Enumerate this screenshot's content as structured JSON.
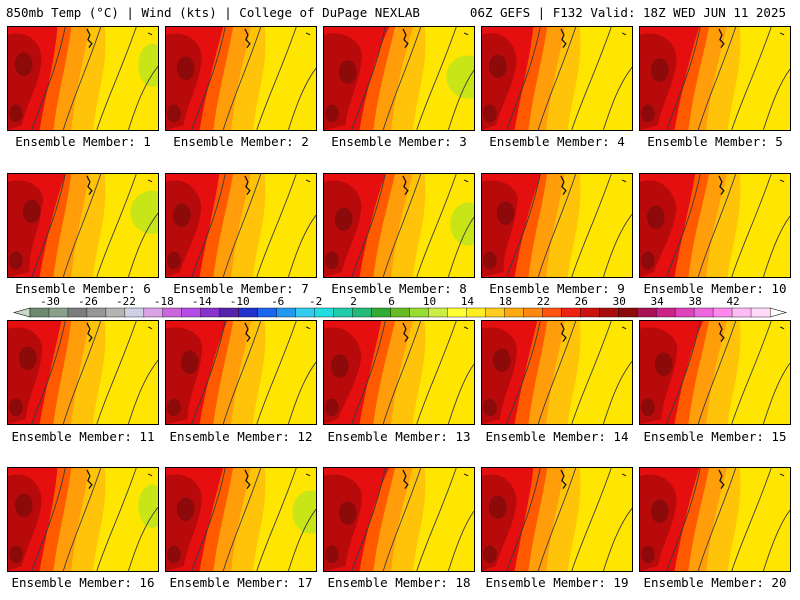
{
  "header": {
    "left": "850mb Temp (°C) | Wind (kts) | College of DuPage NEXLAB",
    "right": "06Z GEFS | F132 Valid: 18Z WED JUN 11 2025"
  },
  "members": [
    "Ensemble Member: 1",
    "Ensemble Member: 2",
    "Ensemble Member: 3",
    "Ensemble Member: 4",
    "Ensemble Member: 5",
    "Ensemble Member: 6",
    "Ensemble Member: 7",
    "Ensemble Member: 8",
    "Ensemble Member: 9",
    "Ensemble Member: 10",
    "Ensemble Member: 11",
    "Ensemble Member: 12",
    "Ensemble Member: 13",
    "Ensemble Member: 14",
    "Ensemble Member: 15",
    "Ensemble Member: 16",
    "Ensemble Member: 17",
    "Ensemble Member: 18",
    "Ensemble Member: 19",
    "Ensemble Member: 20"
  ],
  "colorbar": {
    "labels": [
      "-30",
      "-26",
      "-22",
      "-18",
      "-14",
      "-10",
      "-6",
      "-2",
      "2",
      "6",
      "10",
      "14",
      "18",
      "22",
      "26",
      "30",
      "34",
      "38",
      "42"
    ],
    "colors": [
      "#6e8a6e",
      "#8aa08a",
      "#7d7d7d",
      "#969696",
      "#b3b3b3",
      "#cfcfe6",
      "#d9a3e6",
      "#cc66dd",
      "#b34de6",
      "#8833cc",
      "#5522aa",
      "#2233cc",
      "#1a66ee",
      "#2299ee",
      "#33ccee",
      "#22dddd",
      "#22ccaa",
      "#22bb77",
      "#33aa33",
      "#66bb22",
      "#99dd33",
      "#ccee44",
      "#ffff33",
      "#ffee22",
      "#ffcc22",
      "#ffaa11",
      "#ff8811",
      "#ff5511",
      "#ee2211",
      "#cc1111",
      "#a80d0d",
      "#8a0a0a",
      "#aa1155",
      "#cc2288",
      "#dd44bb",
      "#ee66dd",
      "#ff88ee",
      "#ffbbf5",
      "#ffd9fa"
    ]
  },
  "map_colors": {
    "lime": "#c8e617",
    "yellow": "#ffe600",
    "gold": "#ffc40a",
    "orange": "#ff9e0a",
    "orange_red": "#ff5a00",
    "red": "#e60f0f",
    "dark_red": "#b80a0a",
    "maroon": "#8c0a0a"
  }
}
